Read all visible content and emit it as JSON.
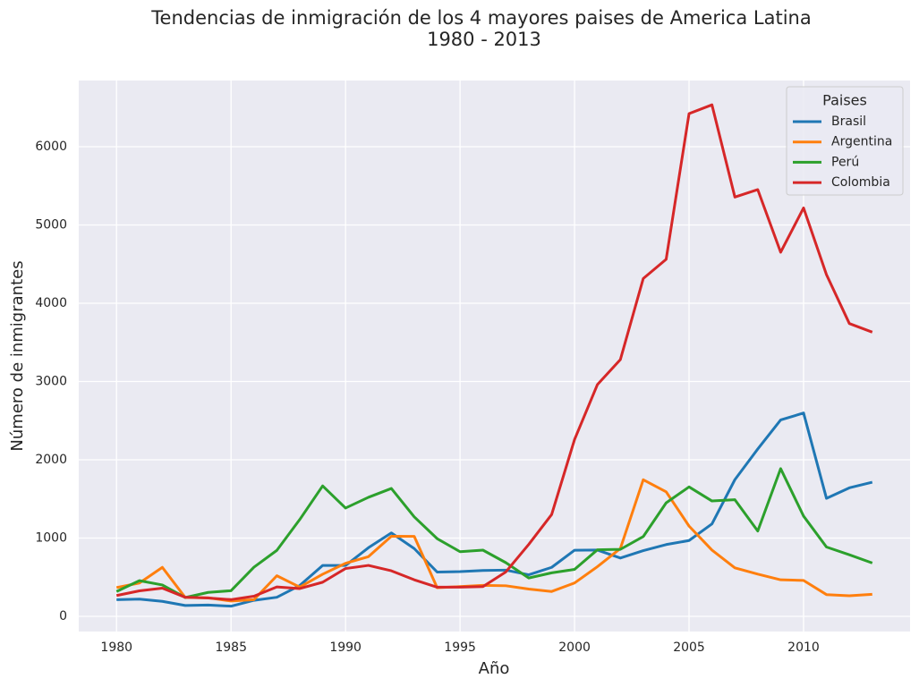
{
  "chart_data": {
    "type": "line",
    "title": "Tendencias de inmigración de los 4 mayores paises de America Latina",
    "subtitle": "1980 - 2013",
    "x_label": "Año",
    "y_label": "Número de inmigrantes",
    "legend_title": "Paises",
    "legend": "upper right",
    "grid": true,
    "x": [
      1980,
      1981,
      1982,
      1983,
      1984,
      1985,
      1986,
      1987,
      1988,
      1989,
      1990,
      1991,
      1992,
      1993,
      1994,
      1995,
      1996,
      1997,
      1998,
      1999,
      2000,
      2001,
      2002,
      2003,
      2004,
      2005,
      2006,
      2007,
      2008,
      2009,
      2010,
      2011,
      2012,
      2013
    ],
    "series": [
      {
        "name": "Brasil",
        "color": "#1f77b4",
        "values": [
          213,
          220,
          192,
          139,
          145,
          130,
          205,
          244,
          394,
          650,
          650,
          877,
          1066,
          866,
          566,
          572,
          586,
          591,
          531,
          626,
          845,
          847,
          745,
          839,
          917,
          969,
          1181,
          1746,
          2138,
          2509,
          2598,
          1508,
          1642,
          1714
        ]
      },
      {
        "name": "Argentina",
        "color": "#ff7f0e",
        "values": [
          368,
          426,
          626,
          241,
          237,
          196,
          213,
          519,
          374,
          538,
          678,
          763,
          1023,
          1022,
          366,
          380,
          396,
          391,
          349,
          318,
          427,
          635,
          867,
          1745,
          1591,
          1153,
          847,
          620,
          540,
          467,
          459,
          278,
          263,
          282
        ]
      },
      {
        "name": "Perú",
        "color": "#2ca02c",
        "values": [
          317,
          456,
          401,
          241,
          306,
          328,
          628,
          843,
          1237,
          1667,
          1384,
          1521,
          1634,
          1271,
          993,
          826,
          846,
          686,
          490,
          556,
          600,
          851,
          856,
          1019,
          1450,
          1654,
          1474,
          1490,
          1090,
          1887,
          1281,
          886,
          787,
          682
        ]
      },
      {
        "name": "Colombia",
        "color": "#d62728",
        "values": [
          266,
          326,
          360,
          244,
          235,
          214,
          257,
          376,
          355,
          436,
          611,
          651,
          582,
          467,
          373,
          373,
          380,
          568,
          920,
          1301,
          2260,
          2962,
          3280,
          4316,
          4562,
          6423,
          6535,
          5357,
          5452,
          4652,
          5218,
          4366,
          3741,
          3631
        ]
      }
    ],
    "xlim": [
      1978.35,
      2014.65
    ],
    "ylim": [
      -194,
      6846
    ],
    "xticks": [
      1980,
      1985,
      1990,
      1995,
      2000,
      2005,
      2010
    ],
    "yticks": [
      0,
      1000,
      2000,
      3000,
      4000,
      5000,
      6000
    ]
  }
}
